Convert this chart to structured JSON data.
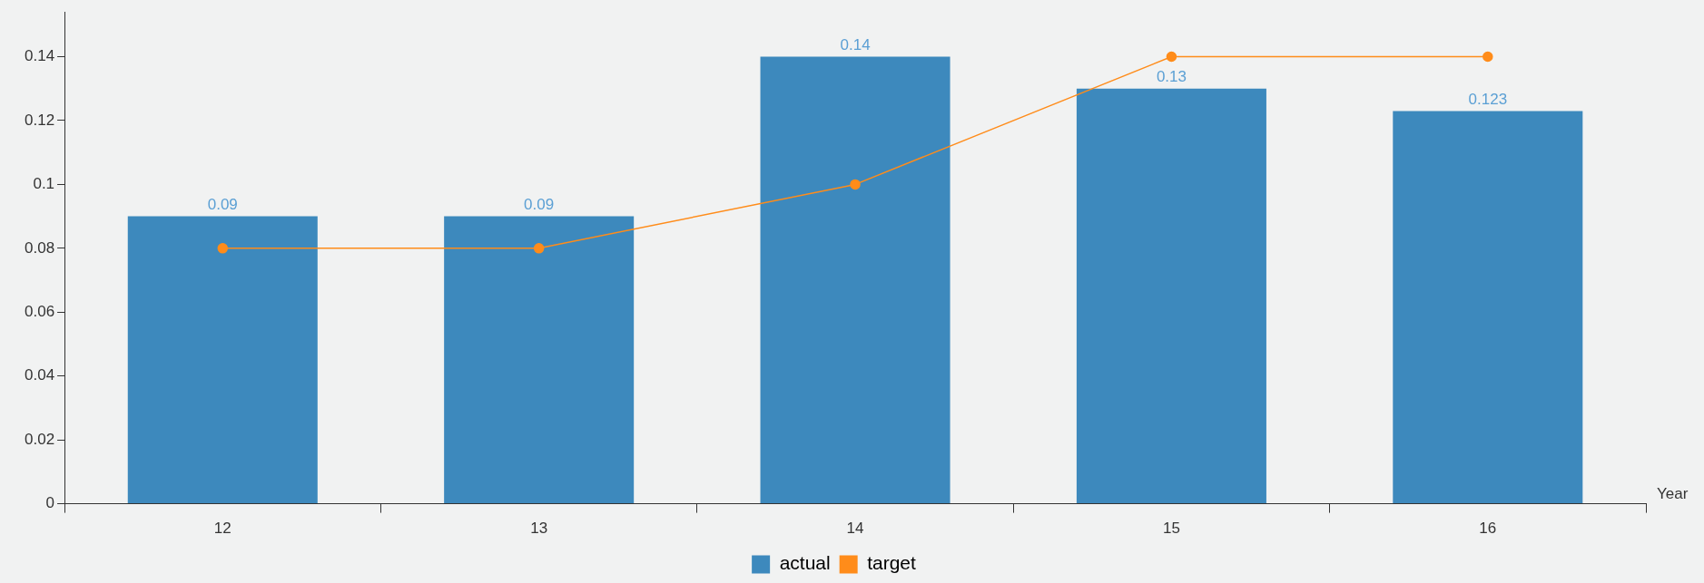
{
  "chart_data": {
    "type": "bar",
    "xlabel": "Year",
    "categories": [
      "12",
      "13",
      "14",
      "15",
      "16"
    ],
    "series": [
      {
        "name": "actual",
        "color": "#3d89bd",
        "values": [
          0.09,
          0.09,
          0.14,
          0.13,
          0.123
        ],
        "value_labels": [
          "0.09",
          "0.09",
          "0.14",
          "0.13",
          "0.123"
        ]
      },
      {
        "name": "target",
        "type": "line",
        "color": "#ff8c1a",
        "values": [
          0.08,
          0.08,
          0.1,
          0.14,
          0.14
        ],
        "marker": "circle"
      }
    ],
    "ylim": [
      0,
      0.154
    ],
    "yticks": [
      0,
      0.02,
      0.04,
      0.06,
      0.08,
      0.1,
      0.12,
      0.14
    ],
    "grid": false,
    "legend": "bottom"
  }
}
